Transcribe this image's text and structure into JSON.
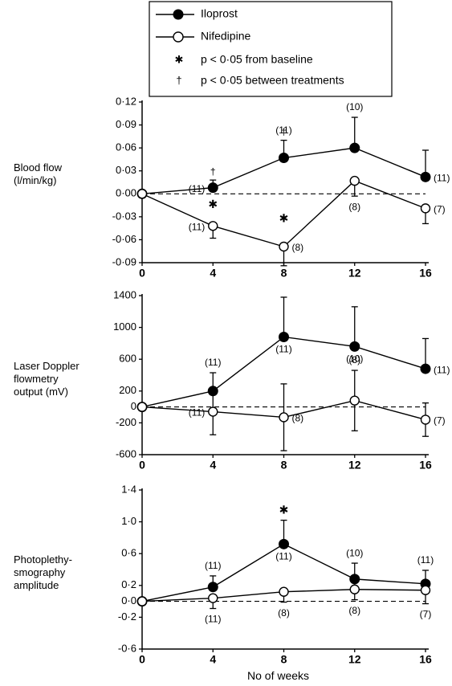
{
  "legend": {
    "iloprost": "Iloprost",
    "nifedipine": "Nifedipine",
    "asterisk_note": "p < 0·05 from baseline",
    "dagger_note": "p < 0·05 between treatments"
  },
  "xlabel": "No of weeks",
  "chart_data": [
    {
      "type": "line",
      "ylabel": "Blood flow\n(l/min/kg)",
      "x": [
        0,
        4,
        8,
        12,
        16
      ],
      "xticks": [
        "0",
        "4",
        "8",
        "12",
        "16"
      ],
      "ylim": [
        -0.09,
        0.12
      ],
      "yticks": [
        -0.09,
        -0.06,
        -0.03,
        0.0,
        0.03,
        0.06,
        0.09,
        0.12
      ],
      "ytick_labels": [
        "-0·09",
        "-0·06",
        "-0·03",
        "0·00",
        "0·03",
        "0·06",
        "0·09",
        "0·12"
      ],
      "baseline": 0,
      "series": [
        {
          "name": "Iloprost",
          "marker": "filled",
          "values": [
            0,
            0.008,
            0.047,
            0.06,
            0.022
          ],
          "err": [
            null,
            0.01,
            0.023,
            0.04,
            0.035
          ],
          "err_dir": "up",
          "n_labels": [
            "",
            "(11)",
            "(11)",
            "(10)",
            "(11)"
          ],
          "label_pos": [
            "",
            "left",
            "above",
            "above",
            "right"
          ]
        },
        {
          "name": "Nifedipine",
          "marker": "open",
          "values": [
            0,
            -0.042,
            -0.069,
            0.017,
            -0.019
          ],
          "err": [
            null,
            0.016,
            0.025,
            0.02,
            0.02
          ],
          "err_dir": "down_first",
          "n_labels": [
            "",
            "(11)",
            "(8)",
            "(8)",
            "(7)"
          ],
          "label_pos": [
            "",
            "left",
            "right",
            "below",
            "right"
          ]
        }
      ],
      "asterisks": [
        4,
        8
      ],
      "daggers": [
        4,
        8
      ]
    },
    {
      "type": "line",
      "ylabel": "Laser Doppler\nflowmetry\noutput (mV)",
      "x": [
        0,
        4,
        8,
        12,
        16
      ],
      "xticks": [
        "0",
        "4",
        "8",
        "12",
        "16"
      ],
      "ylim": [
        -600,
        1400
      ],
      "yticks": [
        -600,
        -200,
        0,
        200,
        600,
        1000,
        1400
      ],
      "ytick_labels": [
        "-600",
        "-200",
        "0",
        "200",
        "600",
        "1000",
        "1400"
      ],
      "baseline": 0,
      "series": [
        {
          "name": "Iloprost",
          "marker": "filled",
          "values": [
            0,
            200,
            880,
            760,
            480
          ],
          "err": [
            null,
            230,
            500,
            500,
            380
          ],
          "err_dir": "up",
          "n_labels": [
            "",
            "(11)",
            "(11)",
            "(10)",
            "(11)"
          ],
          "label_pos": [
            "",
            "above",
            "below",
            "below",
            "right"
          ]
        },
        {
          "name": "Nifedipine",
          "marker": "open",
          "values": [
            0,
            -60,
            -130,
            80,
            -160
          ],
          "err": [
            null,
            290,
            420,
            380,
            210
          ],
          "err_dir": "both",
          "n_labels": [
            "",
            "(11)",
            "(8)",
            "(8)",
            "(7)"
          ],
          "label_pos": [
            "",
            "left",
            "right",
            "above",
            "right"
          ]
        }
      ],
      "asterisks": [],
      "daggers": []
    },
    {
      "type": "line",
      "ylabel": "Photoplethy-\nsmography\namplitude",
      "x": [
        0,
        4,
        8,
        12,
        16
      ],
      "xticks": [
        "0",
        "4",
        "8",
        "12",
        "16"
      ],
      "ylim": [
        -0.6,
        1.4
      ],
      "yticks": [
        -0.6,
        -0.2,
        0.0,
        0.2,
        0.6,
        1.0,
        1.4
      ],
      "ytick_labels": [
        "-0·6",
        "-0·2",
        "0·0",
        "0·2",
        "0·6",
        "1·0",
        "1·4"
      ],
      "baseline": 0,
      "series": [
        {
          "name": "Iloprost",
          "marker": "filled",
          "values": [
            0,
            0.18,
            0.72,
            0.28,
            0.22
          ],
          "err": [
            null,
            0.14,
            0.3,
            0.2,
            0.17
          ],
          "err_dir": "up",
          "n_labels": [
            "",
            "(11)",
            "(11)",
            "(10)",
            "(11)"
          ],
          "label_pos": [
            "",
            "above",
            "below",
            "above",
            "above"
          ]
        },
        {
          "name": "Nifedipine",
          "marker": "open",
          "values": [
            0,
            0.04,
            0.12,
            0.15,
            0.14
          ],
          "err": [
            null,
            0.13,
            0.13,
            0.13,
            0.17
          ],
          "err_dir": "down",
          "n_labels": [
            "",
            "(11)",
            "(8)",
            "(8)",
            "(7)"
          ],
          "label_pos": [
            "",
            "below",
            "below",
            "below",
            "below"
          ]
        }
      ],
      "asterisks": [
        8
      ],
      "daggers": []
    }
  ]
}
